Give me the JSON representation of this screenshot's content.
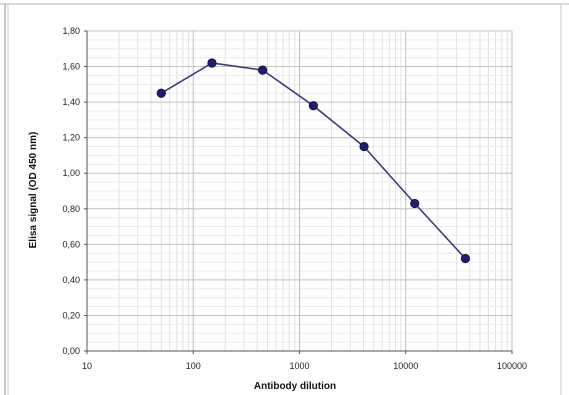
{
  "chart_data": {
    "type": "line",
    "xlabel": "Antibody dilution",
    "ylabel": "Elisa signal (OD 450 nm)",
    "x_scale": "log",
    "xlim": [
      10,
      100000
    ],
    "ylim": [
      0,
      1.8
    ],
    "x_ticks": [
      10,
      100,
      1000,
      10000,
      100000
    ],
    "x_tick_labels": [
      "10",
      "100",
      "1000",
      "10000",
      "100000"
    ],
    "y_ticks": [
      0,
      0.2,
      0.4,
      0.6,
      0.8,
      1.0,
      1.2,
      1.4,
      1.6,
      1.8
    ],
    "y_tick_labels": [
      "0,00",
      "0,20",
      "0,40",
      "0,60",
      "0,80",
      "1,00",
      "1,20",
      "1,40",
      "1,60",
      "1,80"
    ],
    "grid": true,
    "series": [
      {
        "color": "#1f1f6b",
        "line_color": "#3a3f7a",
        "x": [
          50,
          150,
          450,
          1350,
          4050,
          12150,
          36450
        ],
        "y": [
          1.45,
          1.62,
          1.58,
          1.38,
          1.15,
          0.83,
          0.52
        ]
      }
    ]
  }
}
